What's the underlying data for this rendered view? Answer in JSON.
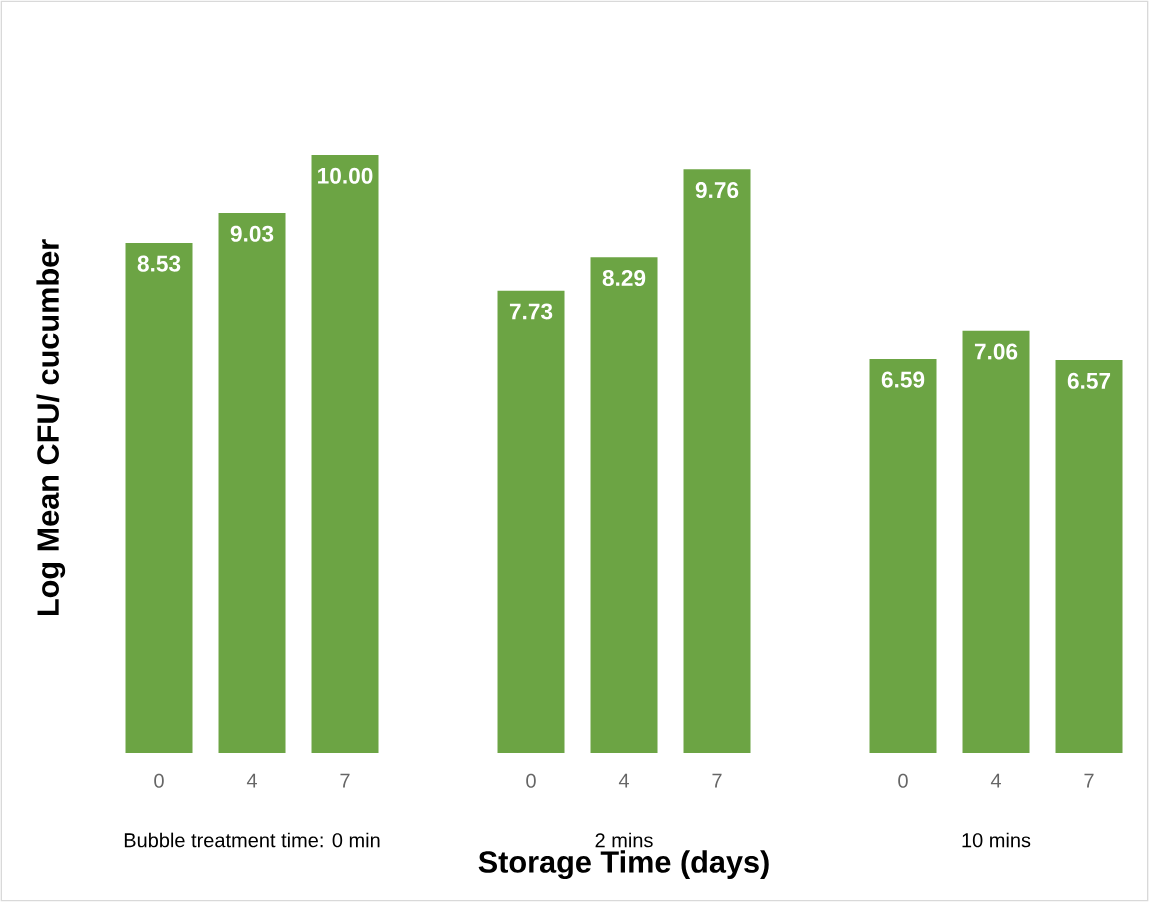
{
  "chart_data": {
    "type": "bar",
    "categories": [
      "0",
      "4",
      "7",
      "0",
      "4",
      "7",
      "0",
      "4",
      "7"
    ],
    "values": [
      8.53,
      9.03,
      10.0,
      7.73,
      8.29,
      9.76,
      6.59,
      7.06,
      6.57
    ],
    "value_labels": [
      "8.53",
      "9.03",
      "10.00",
      "7.73",
      "8.29",
      "9.76",
      "6.59",
      "7.06",
      "6.57"
    ],
    "color": "#6ca444",
    "xlabel": "Storage Time (days)",
    "ylabel": "Log Mean CFU/ cucumber",
    "annotations": [
      "Bubble treatment time: 0 min",
      "2 mins",
      "10 mins"
    ]
  }
}
